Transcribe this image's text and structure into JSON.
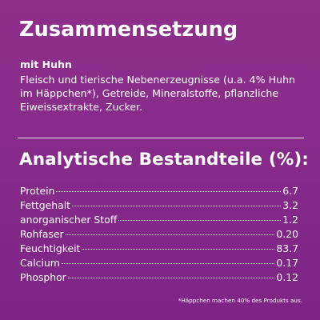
{
  "composition": {
    "title": "Zusammensetzung",
    "variant": "mit Huhn",
    "ingredients": "Fleisch und tierische Nebenerzeugnisse (u.a. 4% Huhn im Häppchen*), Getreide, Mineralstoffe, pflanzliche Eiweissextrakte, Zucker."
  },
  "analysis": {
    "title": "Analytische Bestandteile (%):",
    "rows": [
      {
        "name": "Protein",
        "value": "6.7"
      },
      {
        "name": "Fettgehalt",
        "value": "3.2"
      },
      {
        "name": "anorganischer Stoff",
        "value": "1.2"
      },
      {
        "name": "Rohfaser",
        "value": "0.20"
      },
      {
        "name": "Feuchtigkeit",
        "value": "83.7"
      },
      {
        "name": "Calcium",
        "value": "0.17"
      },
      {
        "name": "Phosphor",
        "value": "0.12"
      }
    ]
  },
  "footnote": "*Häppchen machen 40% des Produkts aus.",
  "colors": {
    "background": "#8a2f86",
    "text": "#ffffff"
  }
}
